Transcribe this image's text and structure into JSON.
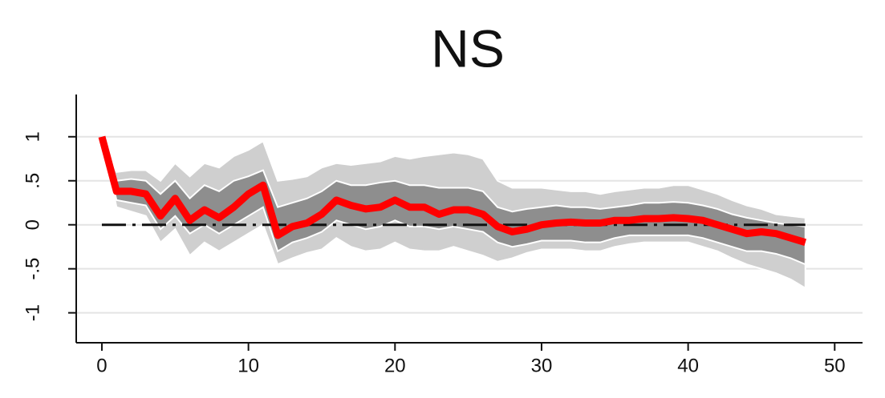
{
  "chart_data": {
    "type": "line",
    "title": "NS",
    "x": [
      0,
      1,
      2,
      3,
      4,
      5,
      6,
      7,
      8,
      9,
      10,
      11,
      12,
      13,
      14,
      15,
      16,
      17,
      18,
      19,
      20,
      21,
      22,
      23,
      24,
      25,
      26,
      27,
      28,
      29,
      30,
      31,
      32,
      33,
      34,
      35,
      36,
      37,
      38,
      39,
      40,
      41,
      42,
      43,
      44,
      45,
      46,
      47,
      48
    ],
    "series": [
      {
        "color": "#ff0000",
        "values": [
          1.0,
          0.38,
          0.38,
          0.35,
          0.1,
          0.3,
          0.05,
          0.17,
          0.08,
          0.2,
          0.35,
          0.45,
          -0.12,
          -0.02,
          0.02,
          0.12,
          0.28,
          0.22,
          0.18,
          0.2,
          0.28,
          0.2,
          0.2,
          0.12,
          0.17,
          0.17,
          0.12,
          -0.02,
          -0.08,
          -0.05,
          0.0,
          0.02,
          0.03,
          0.02,
          0.02,
          0.05,
          0.05,
          0.07,
          0.07,
          0.08,
          0.07,
          0.05,
          0.0,
          -0.05,
          -0.1,
          -0.08,
          -0.1,
          -0.15,
          -0.2
        ]
      }
    ],
    "bands": [
      {
        "color": "#cfcfcf",
        "upper": [
          1.0,
          0.6,
          0.62,
          0.62,
          0.5,
          0.7,
          0.55,
          0.7,
          0.65,
          0.78,
          0.85,
          0.95,
          0.5,
          0.52,
          0.55,
          0.65,
          0.7,
          0.68,
          0.7,
          0.72,
          0.78,
          0.75,
          0.78,
          0.8,
          0.82,
          0.8,
          0.75,
          0.5,
          0.42,
          0.42,
          0.42,
          0.4,
          0.38,
          0.38,
          0.35,
          0.38,
          0.4,
          0.42,
          0.42,
          0.45,
          0.45,
          0.4,
          0.35,
          0.28,
          0.22,
          0.18,
          0.12,
          0.1,
          0.08
        ],
        "lower": [
          1.0,
          0.2,
          0.15,
          0.1,
          -0.2,
          -0.05,
          -0.35,
          -0.2,
          -0.3,
          -0.2,
          -0.1,
          0.0,
          -0.45,
          -0.38,
          -0.32,
          -0.28,
          -0.15,
          -0.25,
          -0.3,
          -0.28,
          -0.2,
          -0.28,
          -0.3,
          -0.3,
          -0.25,
          -0.3,
          -0.35,
          -0.42,
          -0.38,
          -0.32,
          -0.28,
          -0.28,
          -0.28,
          -0.3,
          -0.3,
          -0.25,
          -0.22,
          -0.2,
          -0.2,
          -0.2,
          -0.2,
          -0.25,
          -0.3,
          -0.38,
          -0.45,
          -0.5,
          -0.55,
          -0.62,
          -0.72
        ]
      },
      {
        "color": "#8e8e8e",
        "upper": [
          1.0,
          0.5,
          0.52,
          0.5,
          0.35,
          0.5,
          0.3,
          0.45,
          0.38,
          0.5,
          0.55,
          0.62,
          0.2,
          0.25,
          0.3,
          0.38,
          0.5,
          0.45,
          0.45,
          0.48,
          0.5,
          0.45,
          0.45,
          0.42,
          0.42,
          0.42,
          0.38,
          0.2,
          0.15,
          0.18,
          0.2,
          0.22,
          0.2,
          0.2,
          0.18,
          0.2,
          0.22,
          0.25,
          0.25,
          0.26,
          0.25,
          0.22,
          0.18,
          0.12,
          0.08,
          0.05,
          0.02,
          0.0,
          -0.02
        ],
        "lower": [
          1.0,
          0.28,
          0.25,
          0.22,
          -0.05,
          0.1,
          -0.1,
          0.0,
          -0.1,
          0.0,
          0.1,
          0.2,
          -0.3,
          -0.2,
          -0.15,
          -0.08,
          0.05,
          0.0,
          -0.05,
          -0.02,
          0.05,
          -0.02,
          -0.02,
          -0.05,
          -0.02,
          -0.05,
          -0.08,
          -0.2,
          -0.25,
          -0.22,
          -0.18,
          -0.18,
          -0.18,
          -0.2,
          -0.2,
          -0.15,
          -0.12,
          -0.12,
          -0.12,
          -0.12,
          -0.12,
          -0.15,
          -0.2,
          -0.25,
          -0.3,
          -0.3,
          -0.33,
          -0.38,
          -0.45
        ]
      }
    ],
    "reference_line": 0,
    "xlim": [
      -1.75,
      51.9
    ],
    "ylim": [
      -1.34,
      1.48
    ],
    "xticks": [
      0,
      10,
      20,
      30,
      40,
      50
    ],
    "yticks": [
      -1,
      {
        "value": -0.5,
        "label": "-.5"
      },
      0,
      {
        "value": 0.5,
        "label": ".5"
      },
      1
    ],
    "grid": true
  }
}
